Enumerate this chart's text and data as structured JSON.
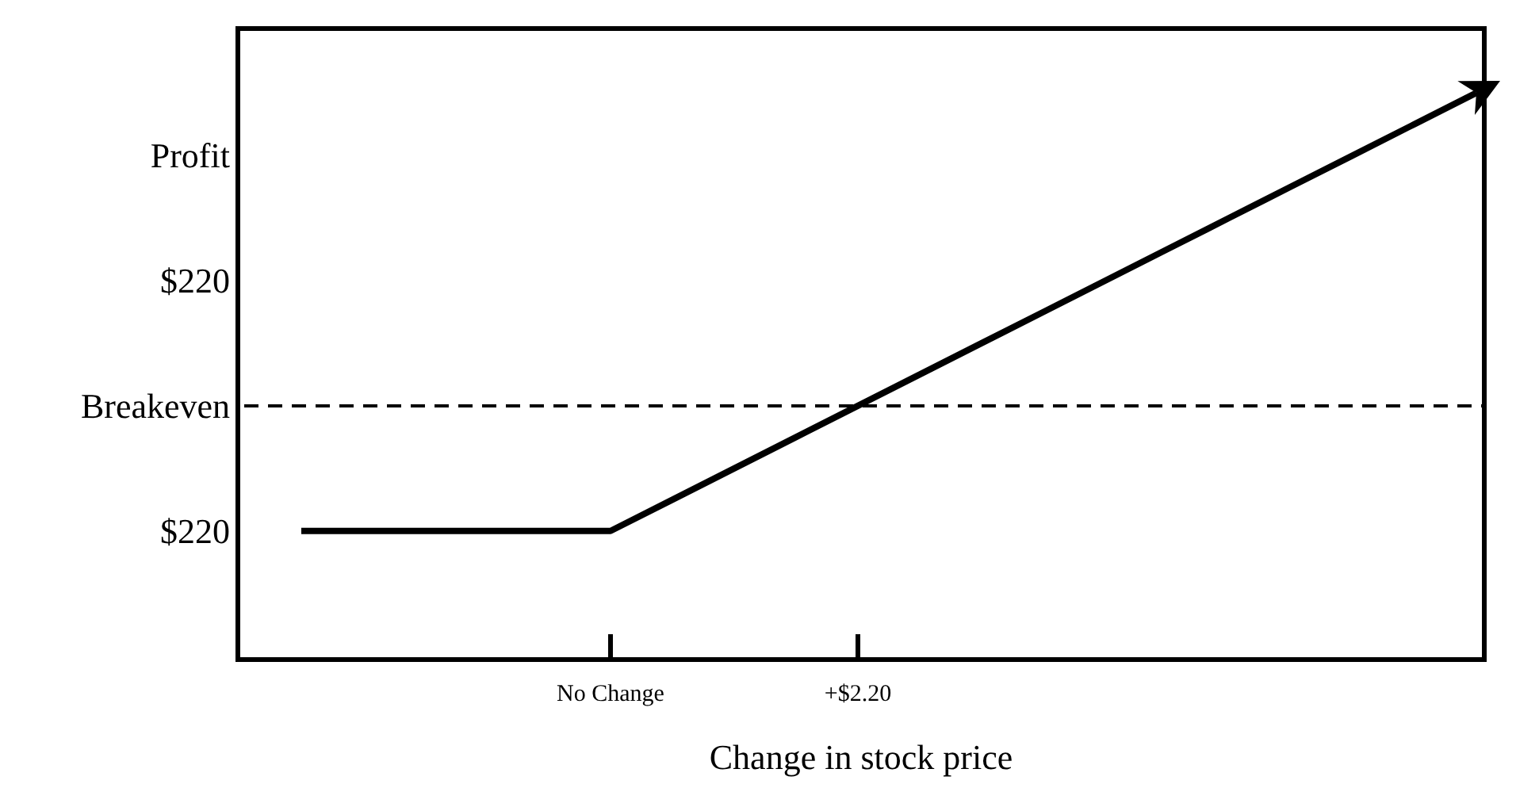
{
  "chart_data": {
    "type": "line",
    "xlabel": "Change in stock price",
    "categories": [
      null,
      null,
      null,
      null,
      null,
      "No Change",
      null,
      null,
      null,
      "+$2.20",
      null,
      null,
      null,
      null,
      null,
      null,
      null,
      null,
      null,
      null
    ],
    "series": [
      {
        "color": "#000000",
        "values": [
          -220,
          -220,
          -220,
          -220,
          -220,
          -220,
          -165,
          -110,
          -55,
          0,
          55,
          110,
          165,
          220,
          275,
          330,
          385,
          440,
          495,
          550
        ]
      }
    ],
    "ylim": [
      -446,
      663
    ],
    "yticks": [
      {
        "value": -220,
        "label": "$220"
      },
      {
        "value": 0,
        "label": "Breakeven"
      },
      {
        "value": 220,
        "label": "$220"
      },
      {
        "value": 440,
        "label": "Profit"
      }
    ],
    "ref_lines": [
      {
        "axis": "y",
        "value": 0,
        "line_style": "dashed",
        "color": "#000000"
      }
    ],
    "marker": "none",
    "line_style": "solid",
    "grid": false
  }
}
